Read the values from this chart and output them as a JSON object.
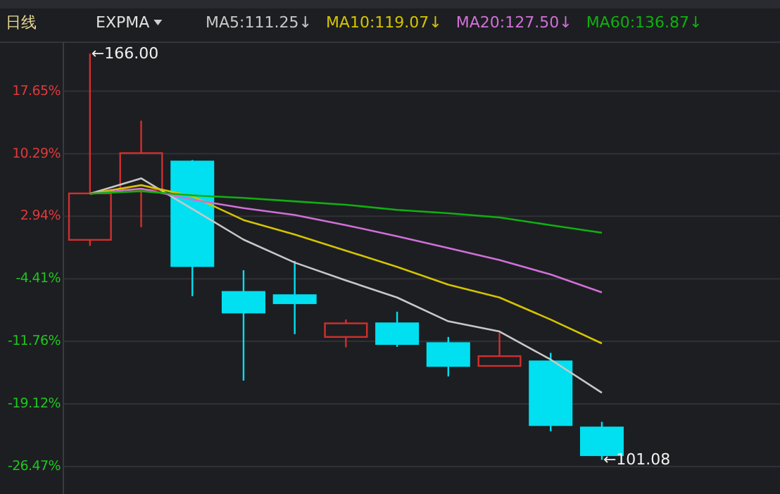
{
  "chart_data": {
    "type": "candlestick",
    "categories": [
      null,
      null,
      null,
      null,
      null,
      null,
      null,
      null,
      null,
      null,
      null
    ],
    "ohlc": [
      [
        0.17,
        22.07,
        -0.54,
        5.63
      ],
      [
        6.07,
        14.18,
        1.66,
        10.37
      ],
      [
        9.38,
        9.55,
        -6.45,
        -2.91
      ],
      [
        -5.95,
        -3.4,
        -16.37,
        -8.37
      ],
      [
        -6.33,
        -2.31,
        -10.91,
        -7.28
      ],
      [
        -11.24,
        -9.19,
        -12.45,
        -9.64
      ],
      [
        -9.64,
        -8.27,
        -12.4,
        -12.07
      ],
      [
        -11.96,
        -11.24,
        -15.88,
        -14.65
      ],
      [
        -14.65,
        -10.75,
        -14.65,
        -13.5
      ],
      [
        -14.11,
        -13.11,
        -22.33,
        -21.6
      ],
      [
        -21.88,
        -21.22,
        -25.68,
        -25.14
      ]
    ],
    "colors": [
      "#d0302e",
      "#d0302e",
      "#00e0f0",
      "#00e0f0",
      "#00e0f0",
      "#d0302e",
      "#00e0f0",
      "#00e0f0",
      "#d0302e",
      "#00e0f0",
      "#00e0f0"
    ],
    "series": [
      {
        "name": "MA5:111.25↓",
        "type": "line",
        "color": "#c8c8c8",
        "values": [
          5.6,
          7.4,
          3.8,
          0.2,
          -2.5,
          -4.6,
          -6.6,
          -9.4,
          -10.6,
          -13.9,
          -17.8
        ]
      },
      {
        "name": "MA10:119.07↓",
        "type": "line",
        "color": "#d4c400",
        "values": [
          5.6,
          6.6,
          5.3,
          2.5,
          0.8,
          -1.1,
          -3.0,
          -5.1,
          -6.6,
          -9.2,
          -12.0
        ]
      },
      {
        "name": "MA20:127.50↓",
        "type": "line",
        "color": "#d070d8",
        "values": [
          5.6,
          6.2,
          4.9,
          3.9,
          3.1,
          1.9,
          0.6,
          -0.8,
          -2.2,
          -3.9,
          -6.0
        ]
      },
      {
        "name": "MA60:136.87↓",
        "type": "line",
        "color": "#10b010",
        "values": [
          5.6,
          5.9,
          5.4,
          5.1,
          4.7,
          4.3,
          3.7,
          3.3,
          2.8,
          1.9,
          1.0
        ]
      }
    ],
    "ylim": [
      -29.7,
      23.4
    ],
    "yticks": [
      {
        "value": 17.65,
        "label": "17.65%"
      },
      {
        "value": 10.29,
        "label": "10.29%"
      },
      {
        "value": 2.94,
        "label": "2.94%"
      },
      {
        "value": -4.41,
        "label": "-4.41%"
      },
      {
        "value": -11.76,
        "label": "-11.76%"
      },
      {
        "value": -19.12,
        "label": "-19.12%"
      },
      {
        "value": -26.47,
        "label": "-26.47%"
      }
    ],
    "grid": "y",
    "legend": "top",
    "annotations": [
      "日线",
      "EXPMA",
      "←166.00",
      "←101.08"
    ]
  }
}
